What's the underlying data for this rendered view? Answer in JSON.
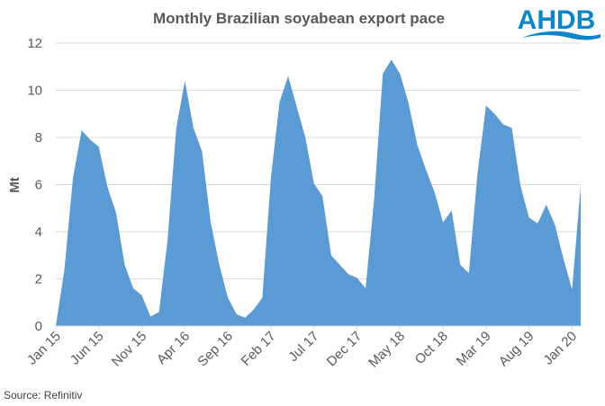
{
  "chart_data": {
    "type": "area",
    "title": "Monthly Brazilian soyabean export pace",
    "xlabel": "",
    "ylabel": "Mt",
    "ylim": [
      0,
      12
    ],
    "yticks": [
      0,
      2,
      4,
      6,
      8,
      10,
      12
    ],
    "grid": true,
    "legend": "none",
    "color": "#5b9bd5",
    "x": [
      "Jan 15",
      "Feb 15",
      "Mar 15",
      "Apr 15",
      "May 15",
      "Jun 15",
      "Jul 15",
      "Aug 15",
      "Sep 15",
      "Oct 15",
      "Nov 15",
      "Dec 15",
      "Jan 16",
      "Feb 16",
      "Mar 16",
      "Apr 16",
      "May 16",
      "Jun 16",
      "Jul 16",
      "Aug 16",
      "Sep 16",
      "Oct 16",
      "Nov 16",
      "Dec 16",
      "Jan 17",
      "Feb 17",
      "Mar 17",
      "Apr 17",
      "May 17",
      "Jun 17",
      "Jul 17",
      "Aug 17",
      "Sep 17",
      "Oct 17",
      "Nov 17",
      "Dec 17",
      "Jan 18",
      "Feb 18",
      "Mar 18",
      "Apr 18",
      "May 18",
      "Jun 18",
      "Jul 18",
      "Aug 18",
      "Sep 18",
      "Oct 18",
      "Nov 18",
      "Dec 18",
      "Jan 19",
      "Feb 19",
      "Mar 19",
      "Apr 19",
      "May 19",
      "Jun 19",
      "Jul 19",
      "Aug 19",
      "Sep 19",
      "Oct 19",
      "Nov 19",
      "Dec 19",
      "Jan 20",
      "Feb 20"
    ],
    "values": [
      0.0,
      2.4,
      6.3,
      8.3,
      7.9,
      7.6,
      5.9,
      4.8,
      2.6,
      1.6,
      1.3,
      0.4,
      0.6,
      3.7,
      8.4,
      10.4,
      8.4,
      7.4,
      4.4,
      2.6,
      1.2,
      0.5,
      0.35,
      0.7,
      1.2,
      6.3,
      9.5,
      10.6,
      9.3,
      8.0,
      6.05,
      5.5,
      3.0,
      2.6,
      2.2,
      2.05,
      1.6,
      5.4,
      10.7,
      11.3,
      10.7,
      9.45,
      7.7,
      6.65,
      5.7,
      4.4,
      4.9,
      2.6,
      2.25,
      6.45,
      9.35,
      9.0,
      8.55,
      8.4,
      5.95,
      4.6,
      4.35,
      5.15,
      4.3,
      2.85,
      1.55,
      5.95
    ],
    "xtick_labels": [
      "Jan 15",
      "Jun 15",
      "Nov 15",
      "Apr 16",
      "Sep 16",
      "Feb 17",
      "Jul 17",
      "Dec 17",
      "May 18",
      "Oct 18",
      "Mar 19",
      "Aug 19",
      "Jan 20"
    ],
    "xtick_every": 5
  },
  "source": "Source: Refinitiv",
  "logo": "AHDB"
}
